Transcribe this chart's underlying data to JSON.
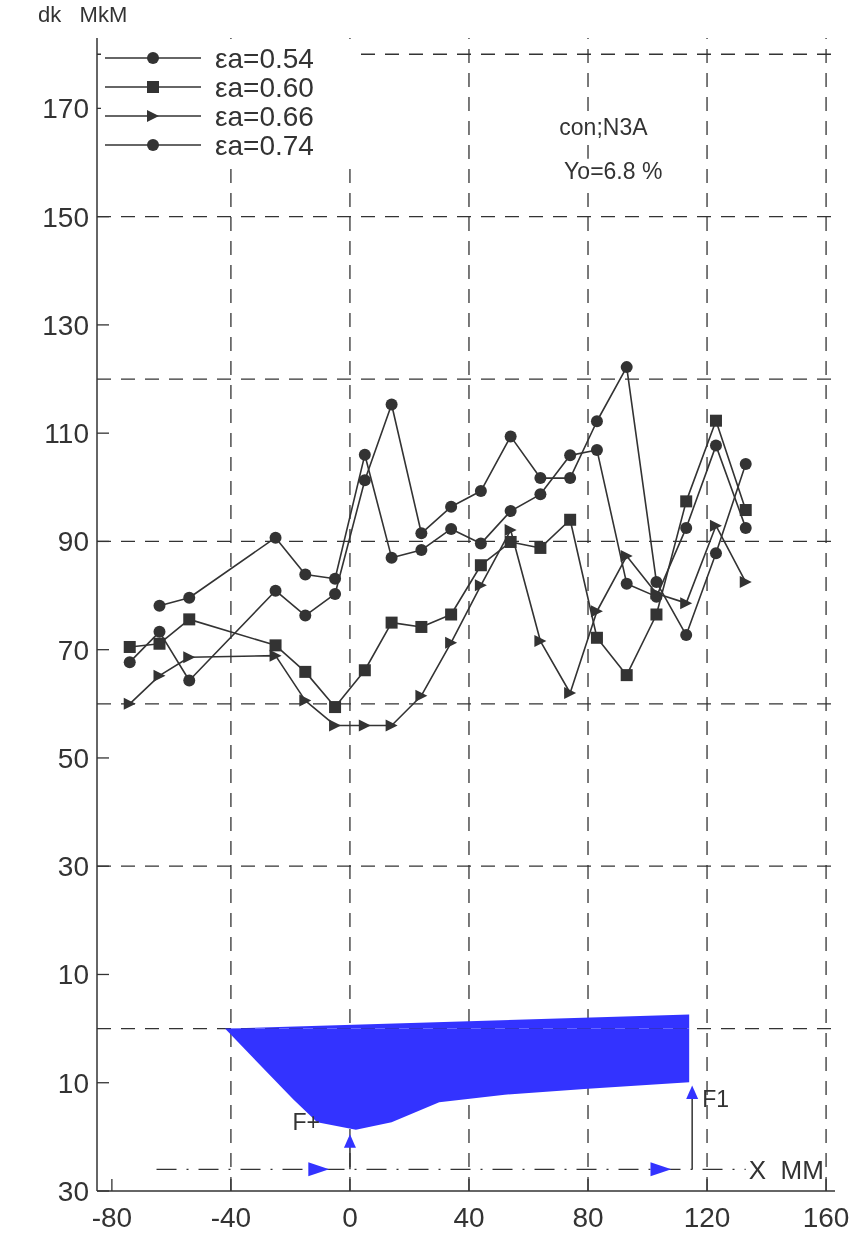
{
  "chart_data": {
    "type": "line",
    "ylabel": "dk   MkM",
    "xlabel": "X  MM",
    "x": [
      -74,
      -64,
      -54,
      -25,
      -15,
      -5,
      5,
      14,
      24,
      34,
      44,
      54,
      64,
      74,
      83,
      93,
      103,
      113,
      123,
      133
    ],
    "series": [
      {
        "name": "εa=0.54",
        "color": "#333333",
        "marker": "circle",
        "values": [
          null,
          78.1,
          79.6,
          90.7,
          83.9,
          83.1,
          106,
          87,
          88.4,
          92.3,
          89.6,
          95.6,
          98.7,
          105.9,
          106.9,
          82.2,
          79.8,
          92.5,
          107.7,
          92.5
        ]
      },
      {
        "name": "εa=0.60",
        "color": "#333333",
        "marker": "square",
        "values": [
          70.5,
          71.1,
          75.6,
          70.8,
          65.9,
          59.4,
          66.2,
          75,
          74.2,
          76.5,
          85.6,
          89.9,
          88.8,
          94,
          72.2,
          65.3,
          76.5,
          97.4,
          112.3,
          95.8
        ]
      },
      {
        "name": "εa=0.66",
        "color": "#333333",
        "marker": "triangle",
        "values": [
          60,
          65.2,
          68.6,
          68.9,
          60.6,
          56,
          56,
          56,
          61.5,
          71.3,
          81.9,
          92.1,
          71.6,
          62,
          77.1,
          87.3,
          80.4,
          78.6,
          92.9,
          82.5
        ]
      },
      {
        "name": "εa=0.74",
        "color": "#333333",
        "marker": "circle",
        "values": [
          67.7,
          73.3,
          64.3,
          80.9,
          76.3,
          80.3,
          101.3,
          115.3,
          91.5,
          96.4,
          99.3,
          109.4,
          101.7,
          101.7,
          112.2,
          122.2,
          82.5,
          72.7,
          87.8,
          104.3
        ]
      },
      {
        "type": "area",
        "color": "#3333ff",
        "x": [
          -42,
          114
        ],
        "values": [
          0,
          2.6
        ]
      },
      {
        "type": "area",
        "color": "#3333ff",
        "x": [
          -42,
          -19,
          -11,
          2,
          14,
          30,
          52,
          80,
          114
        ],
        "values": [
          0,
          -13.1,
          -17.3,
          -18.7,
          -17.3,
          -13.6,
          -12.2,
          -11.1,
          -9.9
        ]
      }
    ],
    "xlim": [
      -85,
      163
    ],
    "ylim": [
      -30,
      183
    ],
    "xticks": [
      -80,
      -40,
      0,
      40,
      80,
      120,
      160
    ],
    "yticks": [
      170,
      150,
      130,
      110,
      90,
      70,
      50,
      30,
      10,
      {
        "value": -10,
        "label": "10"
      },
      {
        "value": -30,
        "label": "30"
      }
    ],
    "ref_lines": [
      {
        "axis": "x",
        "value": -40,
        "line_style": "dashed",
        "color": "#333333"
      },
      {
        "axis": "x",
        "value": 0,
        "line_style": "dashed",
        "color": "#333333"
      },
      {
        "axis": "x",
        "value": 40,
        "line_style": "dashed",
        "color": "#333333"
      },
      {
        "axis": "x",
        "value": 80,
        "line_style": "dashed",
        "color": "#333333"
      },
      {
        "axis": "x",
        "value": 120,
        "line_style": "dashed",
        "color": "#333333"
      },
      {
        "axis": "x",
        "value": 160,
        "line_style": "dashed",
        "color": "#333333"
      },
      {
        "axis": "y",
        "value": -26,
        "line_style": "dashdot",
        "color": "#333333"
      },
      {
        "axis": "y",
        "value": 0,
        "line_style": "dashed",
        "color": "#333333"
      },
      {
        "axis": "y",
        "value": 30,
        "line_style": "dashed",
        "color": "#333333"
      },
      {
        "axis": "y",
        "value": 60,
        "line_style": "dashed",
        "color": "#333333"
      },
      {
        "axis": "y",
        "value": 90,
        "line_style": "dashed",
        "color": "#333333"
      },
      {
        "axis": "y",
        "value": 120,
        "line_style": "dashed",
        "color": "#333333"
      },
      {
        "axis": "y",
        "value": 150,
        "line_style": "dashed",
        "color": "#333333"
      },
      {
        "axis": "y",
        "value": 180,
        "line_style": "dashed",
        "color": "#333333"
      }
    ],
    "annotations": [
      "con;N3A",
      "Yo=6.8 %",
      {
        "text": "F+",
        "x": 0,
        "y": -19.5
      },
      {
        "text": "F1",
        "x": 115,
        "y": -10.5
      }
    ],
    "legend": "top left",
    "line_style": "solid"
  }
}
